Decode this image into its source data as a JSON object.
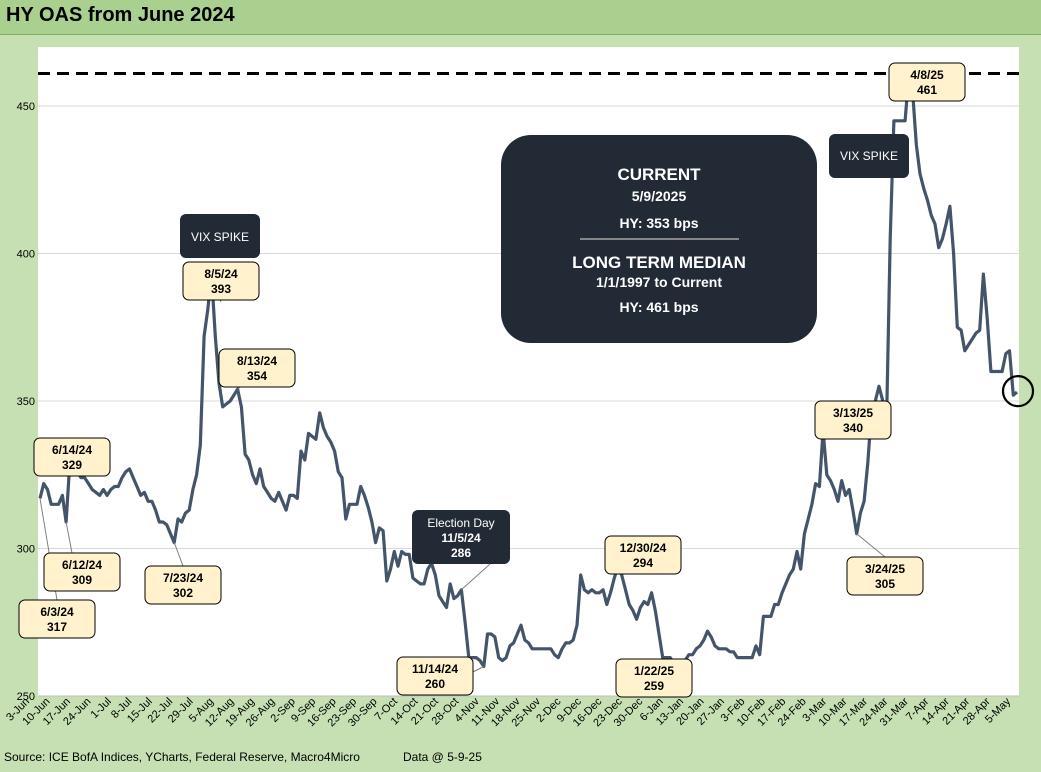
{
  "title": "HY OAS from June 2024",
  "source": "Source: ICE BofA Indices, YCharts, Federal Reserve, Macro4Micro",
  "data_date": "Data @ 5-9-25",
  "colors": {
    "line": "#44546a",
    "dark_box": "#222a35",
    "callout_fill": "#fff2cc",
    "frame": "#c6e0b4",
    "title_bar": "#a9d08e"
  },
  "chart_data": {
    "type": "line",
    "title": "HY OAS from June 2024",
    "xlabel": "",
    "ylabel": "",
    "ylim": [
      250,
      470
    ],
    "yticks": [
      250,
      300,
      350,
      400,
      450
    ],
    "grid": true,
    "xticks": [
      "3-Jun",
      "10-Jun",
      "17-Jun",
      "24-Jun",
      "1-Jul",
      "8-Jul",
      "15-Jul",
      "22-Jul",
      "29-Jul",
      "5-Aug",
      "12-Aug",
      "19-Aug",
      "26-Aug",
      "2-Sep",
      "9-Sep",
      "16-Sep",
      "23-Sep",
      "30-Sep",
      "7-Oct",
      "14-Oct",
      "21-Oct",
      "28-Oct",
      "4-Nov",
      "11-Nov",
      "18-Nov",
      "25-Nov",
      "2-Dec",
      "9-Dec",
      "16-Dec",
      "23-Dec",
      "30-Dec",
      "6-Jan",
      "13-Jan",
      "20-Jan",
      "27-Jan",
      "3-Feb",
      "10-Feb",
      "17-Feb",
      "24-Feb",
      "3-Mar",
      "10-Mar",
      "17-Mar",
      "24-Mar",
      "31-Mar",
      "7-Apr",
      "14-Apr",
      "21-Apr",
      "28-Apr",
      "5-May"
    ],
    "reference_line": {
      "value": 461,
      "style": "dashed"
    },
    "series": [
      {
        "values": [
          [
            0,
            317
          ],
          [
            1,
            322
          ],
          [
            2,
            320
          ],
          [
            3,
            315
          ],
          [
            4,
            315
          ],
          [
            5,
            315
          ],
          [
            6,
            318
          ],
          [
            7,
            309
          ],
          [
            8,
            329
          ],
          [
            9,
            328
          ],
          [
            10,
            326
          ],
          [
            11,
            324
          ],
          [
            12,
            324
          ],
          [
            13,
            322
          ],
          [
            14,
            320
          ],
          [
            15,
            319
          ],
          [
            16,
            318
          ],
          [
            17,
            320
          ],
          [
            18,
            318
          ],
          [
            19,
            320
          ],
          [
            20,
            321
          ],
          [
            21,
            321
          ],
          [
            22,
            324
          ],
          [
            23,
            326
          ],
          [
            24,
            327
          ],
          [
            25,
            324
          ],
          [
            26,
            321
          ],
          [
            27,
            318
          ],
          [
            28,
            319
          ],
          [
            29,
            316
          ],
          [
            30,
            316
          ],
          [
            31,
            313
          ],
          [
            32,
            309
          ],
          [
            33,
            309
          ],
          [
            34,
            308
          ],
          [
            35,
            305
          ],
          [
            36,
            302
          ],
          [
            37,
            310
          ],
          [
            38,
            309
          ],
          [
            39,
            312
          ],
          [
            40,
            313
          ],
          [
            41,
            320
          ],
          [
            42,
            325
          ],
          [
            43,
            335
          ],
          [
            44,
            372
          ],
          [
            45,
            381
          ],
          [
            46,
            393
          ],
          [
            47,
            372
          ],
          [
            48,
            356
          ],
          [
            49,
            348
          ],
          [
            50,
            349
          ],
          [
            51,
            350
          ],
          [
            52,
            352
          ],
          [
            53,
            354
          ],
          [
            54,
            348
          ],
          [
            55,
            332
          ],
          [
            56,
            330
          ],
          [
            57,
            325
          ],
          [
            58,
            322
          ],
          [
            59,
            327
          ],
          [
            60,
            321
          ],
          [
            61,
            319
          ],
          [
            62,
            317
          ],
          [
            63,
            316
          ],
          [
            64,
            319
          ],
          [
            65,
            316
          ],
          [
            66,
            313
          ],
          [
            67,
            318
          ],
          [
            68,
            318
          ],
          [
            69,
            317
          ],
          [
            70,
            333
          ],
          [
            71,
            330
          ],
          [
            72,
            339
          ],
          [
            73,
            338
          ],
          [
            74,
            337
          ],
          [
            75,
            346
          ],
          [
            76,
            341
          ],
          [
            77,
            338
          ],
          [
            78,
            336
          ],
          [
            79,
            333
          ],
          [
            80,
            326
          ],
          [
            81,
            324
          ],
          [
            82,
            310
          ],
          [
            83,
            315
          ],
          [
            84,
            315
          ],
          [
            85,
            315
          ],
          [
            86,
            321
          ],
          [
            87,
            318
          ],
          [
            88,
            314
          ],
          [
            89,
            309
          ],
          [
            90,
            302
          ],
          [
            91,
            307
          ],
          [
            92,
            306
          ],
          [
            93,
            289
          ],
          [
            94,
            293
          ],
          [
            95,
            299
          ],
          [
            96,
            294
          ],
          [
            97,
            299
          ],
          [
            98,
            298
          ],
          [
            99,
            298
          ],
          [
            100,
            290
          ],
          [
            101,
            289
          ],
          [
            102,
            288
          ],
          [
            103,
            288
          ],
          [
            104,
            293
          ],
          [
            105,
            295
          ],
          [
            106,
            291
          ],
          [
            107,
            284
          ],
          [
            108,
            282
          ],
          [
            109,
            280
          ],
          [
            110,
            288
          ],
          [
            111,
            283
          ],
          [
            112,
            284
          ],
          [
            113,
            286
          ],
          [
            114,
            275
          ],
          [
            115,
            263
          ],
          [
            116,
            263
          ],
          [
            117,
            263
          ],
          [
            118,
            262
          ],
          [
            119,
            260
          ],
          [
            120,
            271
          ],
          [
            121,
            271
          ],
          [
            122,
            270
          ],
          [
            123,
            263
          ],
          [
            124,
            262
          ],
          [
            125,
            263
          ],
          [
            126,
            267
          ],
          [
            127,
            268
          ],
          [
            128,
            271
          ],
          [
            129,
            274
          ],
          [
            130,
            269
          ],
          [
            131,
            268
          ],
          [
            132,
            266
          ],
          [
            133,
            266
          ],
          [
            134,
            266
          ],
          [
            135,
            266
          ],
          [
            136,
            266
          ],
          [
            137,
            266
          ],
          [
            138,
            264
          ],
          [
            139,
            263
          ],
          [
            140,
            266
          ],
          [
            141,
            268
          ],
          [
            142,
            268
          ],
          [
            143,
            269
          ],
          [
            144,
            274
          ],
          [
            145,
            291
          ],
          [
            146,
            286
          ],
          [
            147,
            285
          ],
          [
            148,
            286
          ],
          [
            149,
            285
          ],
          [
            150,
            285
          ],
          [
            151,
            286
          ],
          [
            152,
            281
          ],
          [
            153,
            285
          ],
          [
            154,
            290
          ],
          [
            155,
            294
          ],
          [
            156,
            291
          ],
          [
            157,
            286
          ],
          [
            158,
            281
          ],
          [
            159,
            279
          ],
          [
            160,
            276
          ],
          [
            161,
            280
          ],
          [
            162,
            282
          ],
          [
            163,
            281
          ],
          [
            164,
            285
          ],
          [
            165,
            279
          ],
          [
            166,
            271
          ],
          [
            167,
            263
          ],
          [
            168,
            263
          ],
          [
            169,
            263
          ],
          [
            170,
            261
          ],
          [
            171,
            259
          ],
          [
            172,
            260
          ],
          [
            173,
            262
          ],
          [
            174,
            264
          ],
          [
            175,
            264
          ],
          [
            176,
            266
          ],
          [
            177,
            267
          ],
          [
            178,
            269
          ],
          [
            179,
            272
          ],
          [
            180,
            270
          ],
          [
            181,
            267
          ],
          [
            182,
            266
          ],
          [
            183,
            266
          ],
          [
            184,
            266
          ],
          [
            185,
            265
          ],
          [
            186,
            265
          ],
          [
            187,
            263
          ],
          [
            188,
            263
          ],
          [
            189,
            263
          ],
          [
            190,
            263
          ],
          [
            191,
            263
          ],
          [
            192,
            267
          ],
          [
            193,
            264
          ],
          [
            194,
            277
          ],
          [
            195,
            277
          ],
          [
            196,
            277
          ],
          [
            197,
            281
          ],
          [
            198,
            281
          ],
          [
            199,
            285
          ],
          [
            200,
            288
          ],
          [
            201,
            291
          ],
          [
            202,
            293
          ],
          [
            203,
            299
          ],
          [
            204,
            293
          ],
          [
            205,
            305
          ],
          [
            206,
            310
          ],
          [
            207,
            315
          ],
          [
            208,
            322
          ],
          [
            209,
            321
          ],
          [
            210,
            340
          ],
          [
            211,
            325
          ],
          [
            212,
            323
          ],
          [
            213,
            320
          ],
          [
            214,
            316
          ],
          [
            215,
            323
          ],
          [
            216,
            318
          ],
          [
            217,
            320
          ],
          [
            218,
            313
          ],
          [
            219,
            305
          ],
          [
            220,
            312
          ],
          [
            221,
            316
          ],
          [
            222,
            329
          ],
          [
            223,
            347
          ],
          [
            224,
            350
          ],
          [
            225,
            355
          ],
          [
            226,
            350
          ],
          [
            227,
            342
          ],
          [
            228,
            405
          ],
          [
            229,
            445
          ],
          [
            230,
            445
          ],
          [
            231,
            445
          ],
          [
            232,
            445
          ],
          [
            233,
            461
          ],
          [
            234,
            455
          ],
          [
            235,
            437
          ],
          [
            236,
            427
          ],
          [
            237,
            422
          ],
          [
            238,
            418
          ],
          [
            239,
            413
          ],
          [
            240,
            410
          ],
          [
            241,
            402
          ],
          [
            242,
            405
          ],
          [
            243,
            410
          ],
          [
            244,
            416
          ],
          [
            245,
            400
          ],
          [
            246,
            375
          ],
          [
            247,
            374
          ],
          [
            248,
            367
          ],
          [
            249,
            369
          ],
          [
            250,
            371
          ],
          [
            251,
            373
          ],
          [
            252,
            374
          ],
          [
            253,
            393
          ],
          [
            254,
            378
          ],
          [
            255,
            360
          ],
          [
            256,
            360
          ],
          [
            257,
            360
          ],
          [
            258,
            360
          ],
          [
            259,
            366
          ],
          [
            260,
            367
          ],
          [
            261,
            352
          ],
          [
            262,
            353
          ]
        ]
      }
    ],
    "callouts": [
      {
        "date": "6/3/24",
        "value": "317"
      },
      {
        "date": "6/14/24",
        "value": "329"
      },
      {
        "date": "6/12/24",
        "value": "309"
      },
      {
        "date": "7/23/24",
        "value": "302"
      },
      {
        "date": "8/5/24",
        "value": "393"
      },
      {
        "date": "8/13/24",
        "value": "354"
      },
      {
        "date": "11/14/24",
        "value": "260"
      },
      {
        "date": "12/30/24",
        "value": "294"
      },
      {
        "date": "1/22/25",
        "value": "259"
      },
      {
        "date": "3/13/25",
        "value": "340"
      },
      {
        "date": "3/24/25",
        "value": "305"
      },
      {
        "date": "4/8/25",
        "value": "461"
      }
    ],
    "dark_boxes": {
      "vix_spike_1": "VIX SPIKE",
      "vix_spike_2": "VIX SPIKE",
      "election": [
        "Election Day",
        "11/5/24",
        "286"
      ]
    },
    "info_box": {
      "current_title": "CURRENT",
      "current_date": "5/9/2025",
      "current_hy": "HY:   353 bps",
      "median_title": "LONG TERM MEDIAN",
      "median_range": "1/1/1997 to Current",
      "median_hy": "HY: 461 bps"
    }
  }
}
